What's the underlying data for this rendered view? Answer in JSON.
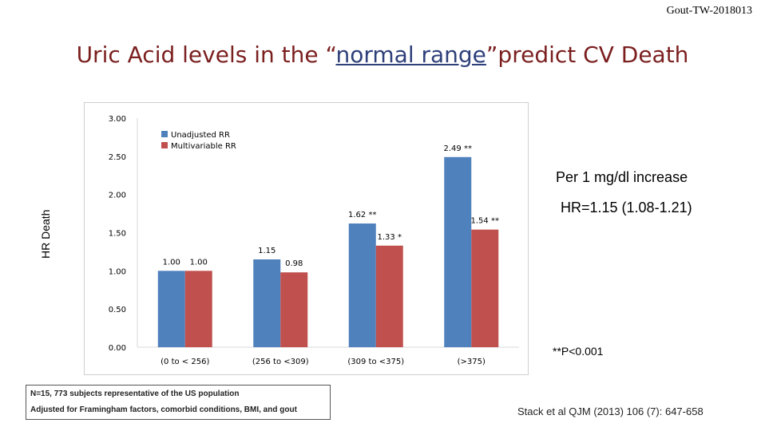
{
  "doc_id": "Gout-TW-2018013",
  "title": {
    "before": "Uric Acid levels in the “",
    "highlight": "normal range",
    "after": "”predict CV Death"
  },
  "notes": {
    "per_unit": "Per 1 mg/dl increase",
    "hr": "HR=1.15 (1.08-1.21)",
    "significance": "**P<0.001"
  },
  "footnote": {
    "line1": "N=15, 773 subjects representative of the US population",
    "line2": "Adjusted for Framingham factors, comorbid conditions, BMI, and gout"
  },
  "citation": "Stack et al QJM (2013) 106 (7): 647-658",
  "colors": {
    "unadjusted": "#4f81bd",
    "multivariable": "#c0504d"
  },
  "chart_data": {
    "type": "bar",
    "ylabel": "HR Death",
    "xlabel": "",
    "ylim": [
      0,
      3
    ],
    "yticks": [
      "0.00",
      "0.50",
      "1.00",
      "1.50",
      "2.00",
      "2.50",
      "3.00"
    ],
    "categories": [
      "(0 to < 256)",
      "(256 to <309)",
      "(309 to <375)",
      "(>375)"
    ],
    "legend_position": "top-left",
    "series": [
      {
        "name": "Unadjusted RR",
        "values": [
          1.0,
          1.15,
          1.62,
          2.49
        ],
        "labels": [
          "1.00",
          "1.15",
          "1.62 **",
          "2.49 **"
        ]
      },
      {
        "name": "Multivariable RR",
        "values": [
          1.0,
          0.98,
          1.33,
          1.54
        ],
        "labels": [
          "1.00",
          "0.98",
          "1.33 *",
          "1.54 **"
        ]
      }
    ]
  }
}
